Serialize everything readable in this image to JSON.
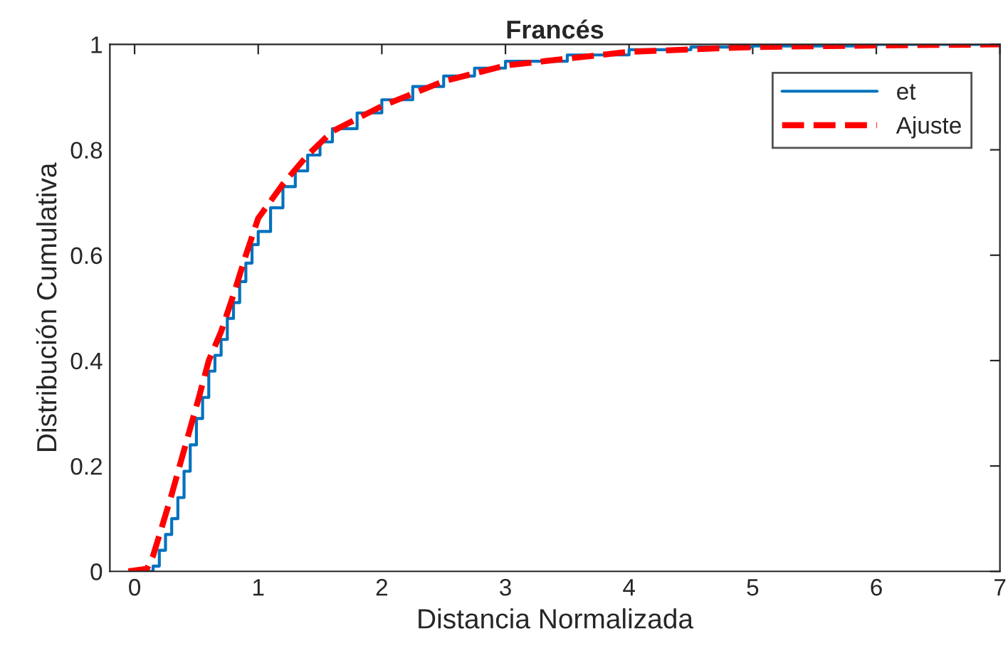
{
  "chart_data": {
    "type": "line",
    "title": "Francés",
    "xlabel": "Distancia Normalizada",
    "ylabel": "Distribución Cumulativa",
    "xlim": [
      -0.2,
      7
    ],
    "xticks": [
      0,
      1,
      2,
      3,
      4,
      5,
      6,
      7
    ],
    "ylim": [
      0,
      1
    ],
    "yticks": [
      0,
      0.2,
      0.4,
      0.6,
      0.8,
      1
    ],
    "grid": false,
    "legend": "top right",
    "series": [
      {
        "name": "et",
        "type": "step",
        "color": "#0072bd",
        "line_style": "solid",
        "x": [
          0.1,
          0.15,
          0.2,
          0.25,
          0.3,
          0.35,
          0.4,
          0.45,
          0.5,
          0.55,
          0.6,
          0.65,
          0.7,
          0.75,
          0.8,
          0.85,
          0.9,
          0.95,
          1.0,
          1.1,
          1.2,
          1.3,
          1.4,
          1.5,
          1.6,
          1.8,
          2.0,
          2.25,
          2.5,
          2.75,
          3.0,
          3.5,
          4.0,
          4.5,
          5.0,
          6.0,
          7.0
        ],
        "values": [
          0,
          0.01,
          0.04,
          0.07,
          0.1,
          0.14,
          0.19,
          0.24,
          0.29,
          0.33,
          0.38,
          0.41,
          0.44,
          0.48,
          0.51,
          0.55,
          0.585,
          0.62,
          0.645,
          0.69,
          0.73,
          0.76,
          0.79,
          0.815,
          0.84,
          0.87,
          0.895,
          0.92,
          0.94,
          0.955,
          0.968,
          0.98,
          0.99,
          0.995,
          0.997,
          1,
          1
        ]
      },
      {
        "name": "Ajuste",
        "color": "#ff0000",
        "line_style": "dashed",
        "x": [
          -0.05,
          0.1,
          0.15,
          0.21,
          0.3,
          0.4,
          0.52,
          0.6,
          0.7,
          0.8,
          0.9,
          1.0,
          1.2,
          1.4,
          1.6,
          2.0,
          2.5,
          3.0,
          4.0,
          5.0,
          6.0,
          7.0
        ],
        "values": [
          0,
          0.005,
          0.03,
          0.076,
          0.146,
          0.23,
          0.33,
          0.4,
          0.455,
          0.525,
          0.6,
          0.67,
          0.735,
          0.79,
          0.835,
          0.883,
          0.93,
          0.96,
          0.986,
          0.995,
          0.998,
          1
        ]
      }
    ]
  }
}
